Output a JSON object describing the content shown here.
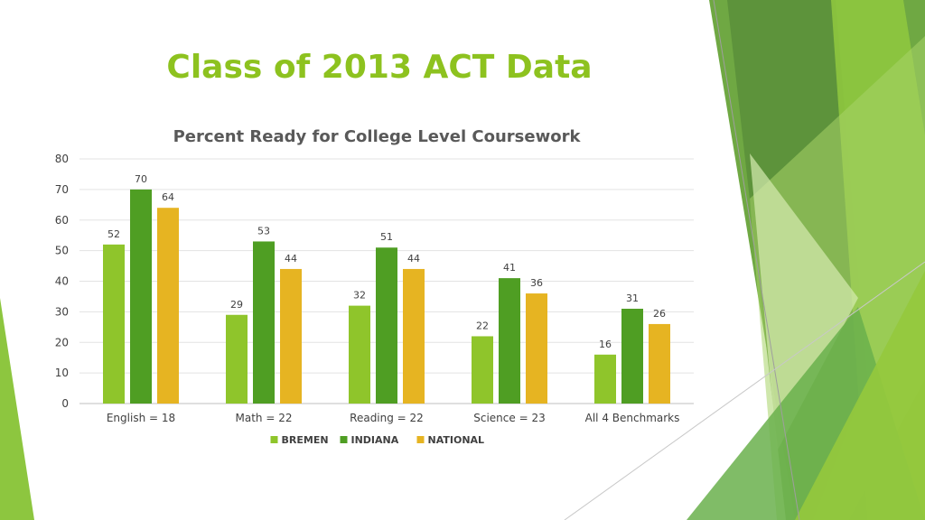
{
  "slide": {
    "title": "Class of 2013 ACT Data"
  },
  "chart_data": {
    "type": "bar",
    "title": "Percent Ready for College Level Coursework",
    "categories": [
      "English = 18",
      "Math = 22",
      "Reading = 22",
      "Science = 23",
      "All 4 Benchmarks"
    ],
    "series": [
      {
        "name": "BREMEN",
        "color": "#8fc52b",
        "values": [
          52,
          29,
          32,
          22,
          16
        ]
      },
      {
        "name": "INDIANA",
        "color": "#4f9e23",
        "values": [
          70,
          53,
          51,
          41,
          31
        ]
      },
      {
        "name": "NATIONAL",
        "color": "#e6b422",
        "values": [
          64,
          44,
          44,
          36,
          26
        ]
      }
    ],
    "ylim": [
      0,
      80
    ],
    "yticks": [
      0,
      10,
      20,
      30,
      40,
      50,
      60,
      70,
      80
    ],
    "grid": true,
    "legend_position": "bottom"
  }
}
